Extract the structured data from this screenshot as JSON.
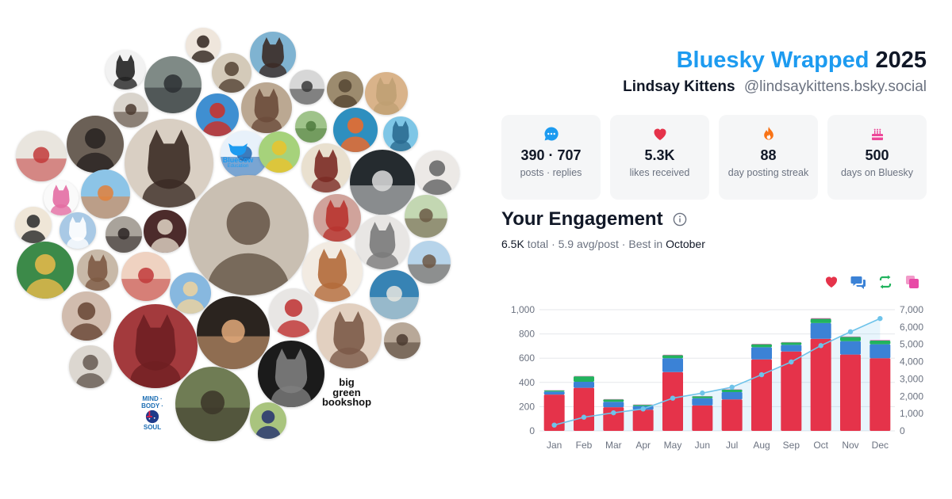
{
  "header": {
    "brand": "Bluesky Wrapped",
    "year": "2025",
    "display_name": "Lindsay Kittens",
    "handle": "@lindsaykittens.bsky.social"
  },
  "stats": [
    {
      "icon": "speech-bubble-icon",
      "value": "390 · 707",
      "label": "posts · replies",
      "color": "#1d9bf0"
    },
    {
      "icon": "heart-icon",
      "value": "5.3K",
      "label": "likes received",
      "color": "#e5334a"
    },
    {
      "icon": "flame-icon",
      "value": "88",
      "label": "day posting streak",
      "color": "#f97316"
    },
    {
      "icon": "cake-icon",
      "value": "500",
      "label": "days on Bluesky",
      "color": "#ec4899"
    }
  ],
  "engagement": {
    "title": "Your Engagement",
    "total": "6.5K",
    "total_word": "total",
    "avg": "5.9 avg/post",
    "best_prefix": "Best in",
    "best_month": "October"
  },
  "avatar_logos": {
    "bluecow": "BlueCow",
    "bluecow_sub": "Education",
    "bigbook_line1": "big",
    "bigbook_line2": "green",
    "bigbook_line3": "bookshop",
    "mbs_top": "MIND · BODY ·",
    "mbs_bottom": "SOUL"
  },
  "colors": {
    "likes": "#e5334a",
    "replies": "#3b82d6",
    "reposts": "#22b35e",
    "quotes": "#e84aa6",
    "cumulative": "#6ec3ea"
  },
  "chart_data": {
    "type": "bar",
    "categories": [
      "Jan",
      "Feb",
      "Mar",
      "Apr",
      "May",
      "Jun",
      "Jul",
      "Aug",
      "Sep",
      "Oct",
      "Nov",
      "Dec"
    ],
    "series": [
      {
        "key": "likes",
        "values": [
          300,
          355,
          195,
          175,
          485,
          210,
          260,
          590,
          655,
          760,
          630,
          600
        ]
      },
      {
        "key": "replies",
        "values": [
          25,
          50,
          45,
          30,
          115,
          60,
          60,
          100,
          55,
          130,
          110,
          115
        ]
      },
      {
        "key": "reposts",
        "values": [
          8,
          45,
          20,
          10,
          25,
          15,
          20,
          25,
          20,
          35,
          35,
          30
        ]
      },
      {
        "key": "quotes",
        "values": [
          2,
          3,
          2,
          2,
          3,
          2,
          2,
          3,
          3,
          5,
          4,
          4
        ]
      }
    ],
    "cumulative": [
      335,
      790,
      1045,
      1265,
      1890,
      2185,
      2525,
      3245,
      3980,
      4925,
      5725,
      6490
    ],
    "ylim_left": [
      0,
      1000
    ],
    "yticks_left": [
      "0",
      "200",
      "400",
      "600",
      "800",
      "1,000"
    ],
    "ylim_right": [
      0,
      7000
    ],
    "yticks_right": [
      "0",
      "1,000",
      "2,000",
      "3,000",
      "4,000",
      "5,000",
      "6,000",
      "7,000"
    ],
    "grid": true,
    "legend": "top-right"
  }
}
